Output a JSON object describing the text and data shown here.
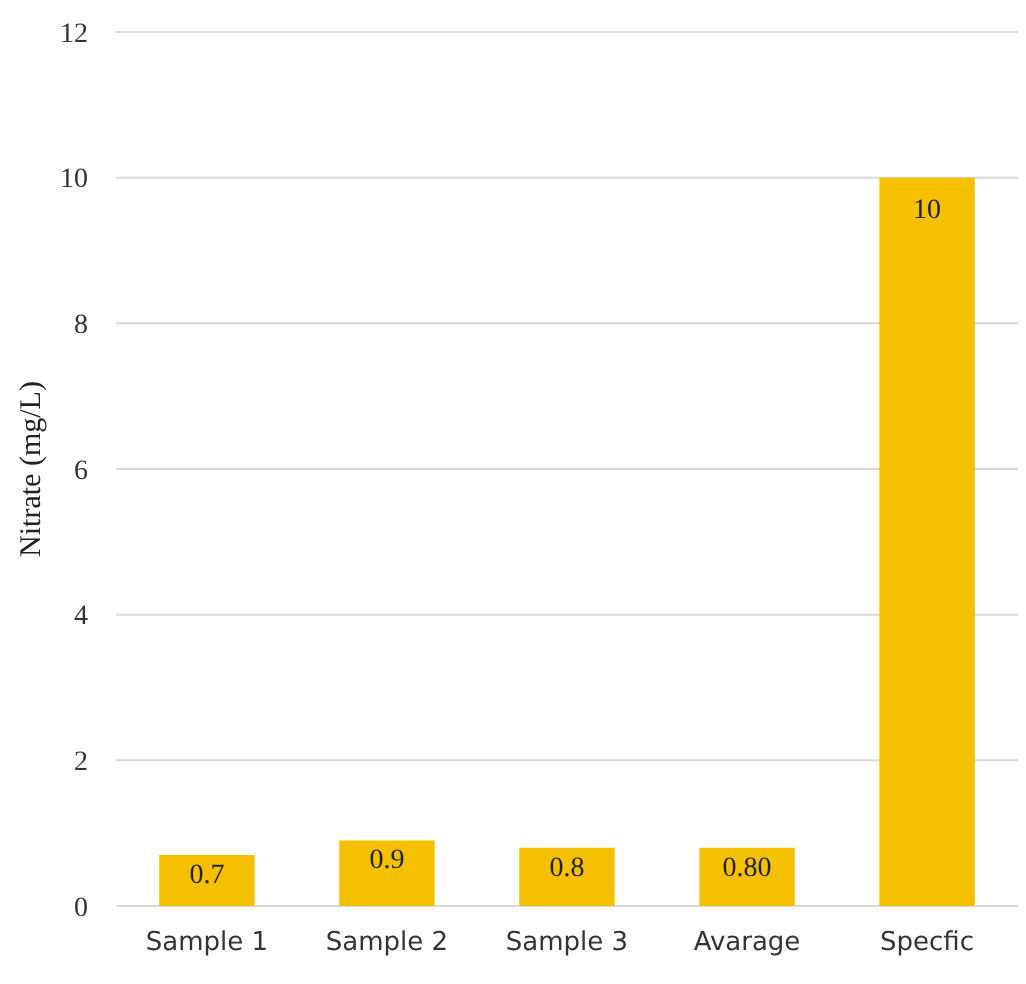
{
  "chart_data": {
    "type": "bar",
    "ylabel": "Nitrate  (mg/L)",
    "categories": [
      "Sample 1",
      "Sample 2",
      "Sample 3",
      "Avarage",
      "Specfic"
    ],
    "values": [
      0.7,
      0.9,
      0.8,
      0.8,
      10
    ],
    "value_labels": [
      "0.7",
      "0.9",
      "0.8",
      "0.80",
      "10"
    ],
    "color": "#f5c000",
    "ylim": [
      0,
      12
    ],
    "yticks": [
      0,
      2,
      4,
      6,
      8,
      10,
      12
    ],
    "grid": "y"
  }
}
